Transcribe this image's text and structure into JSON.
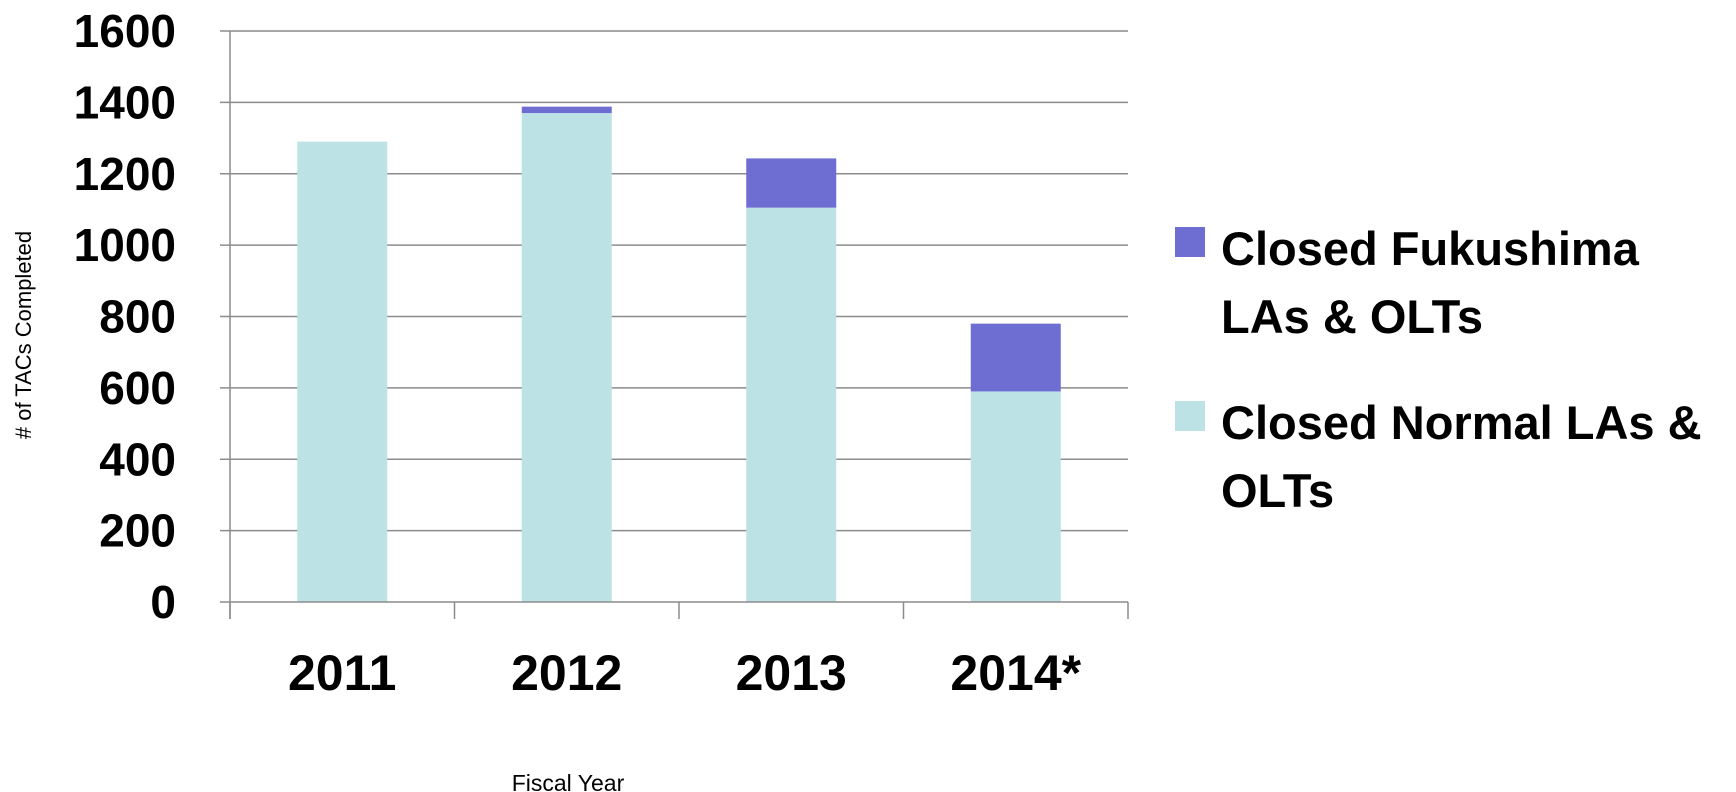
{
  "chart_data": {
    "type": "bar",
    "stacked": true,
    "categories": [
      "2011",
      "2012",
      "2013",
      "2014*"
    ],
    "series": [
      {
        "name": "Closed Normal LAs & OLTs",
        "values": [
          1290,
          1370,
          1105,
          590
        ],
        "color": "#bce2e5"
      },
      {
        "name": "Closed Fukushima LAs & OLTs",
        "values": [
          0,
          18,
          138,
          190
        ],
        "color": "#6e6ed2"
      }
    ],
    "xlabel": "Fiscal Year",
    "ylabel": "# of TACs Completed",
    "ylim": [
      0,
      1600
    ],
    "yticks": [
      0,
      200,
      400,
      600,
      800,
      1000,
      1200,
      1400,
      1600
    ],
    "grid": true,
    "legend_position": "right",
    "legend_order": [
      1,
      0
    ]
  }
}
